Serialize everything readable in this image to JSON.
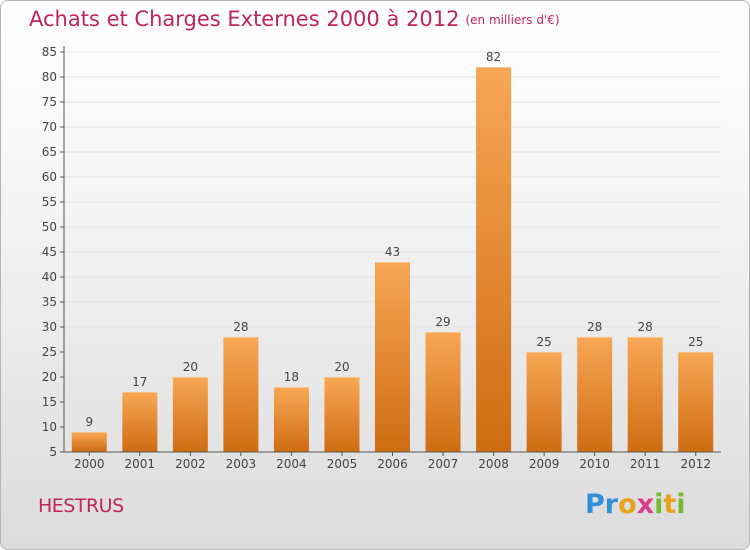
{
  "title": "Achats et Charges Externes 2000 à 2012",
  "subtitle": "(en milliers d'€)",
  "commune": "HESTRUS",
  "logo": {
    "text": "Proxiti",
    "letters": [
      "P",
      "r",
      "o",
      "x",
      "i",
      "t",
      "i"
    ],
    "colors": [
      "#2f8fd8",
      "#2f8fd8",
      "#e8a21c",
      "#d93b8a",
      "#78b832",
      "#e8a21c",
      "#78b832"
    ]
  },
  "colors": {
    "bar_top": "#f8a755",
    "bar_bottom": "#cf6c12",
    "text": "#c0245c",
    "axis": "#555555",
    "grid": "#e4e4e4"
  },
  "chart_data": {
    "type": "bar",
    "title": "Achats et Charges Externes 2000 à 2012",
    "ylabel": "en milliers d'€",
    "xlabel": "",
    "categories": [
      "2000",
      "2001",
      "2002",
      "2003",
      "2004",
      "2005",
      "2006",
      "2007",
      "2008",
      "2009",
      "2010",
      "2011",
      "2012"
    ],
    "values": [
      9,
      17,
      20,
      28,
      18,
      20,
      43,
      29,
      82,
      25,
      28,
      28,
      25
    ],
    "labels": [
      "9",
      "17",
      "20",
      "28",
      "18",
      "20",
      "43",
      "29",
      "82",
      "25",
      "28",
      "28",
      "25"
    ],
    "ylim": [
      5,
      85
    ],
    "yticks": [
      5,
      10,
      15,
      20,
      25,
      30,
      35,
      40,
      45,
      50,
      55,
      60,
      65,
      70,
      75,
      80,
      85
    ],
    "grid": true
  }
}
